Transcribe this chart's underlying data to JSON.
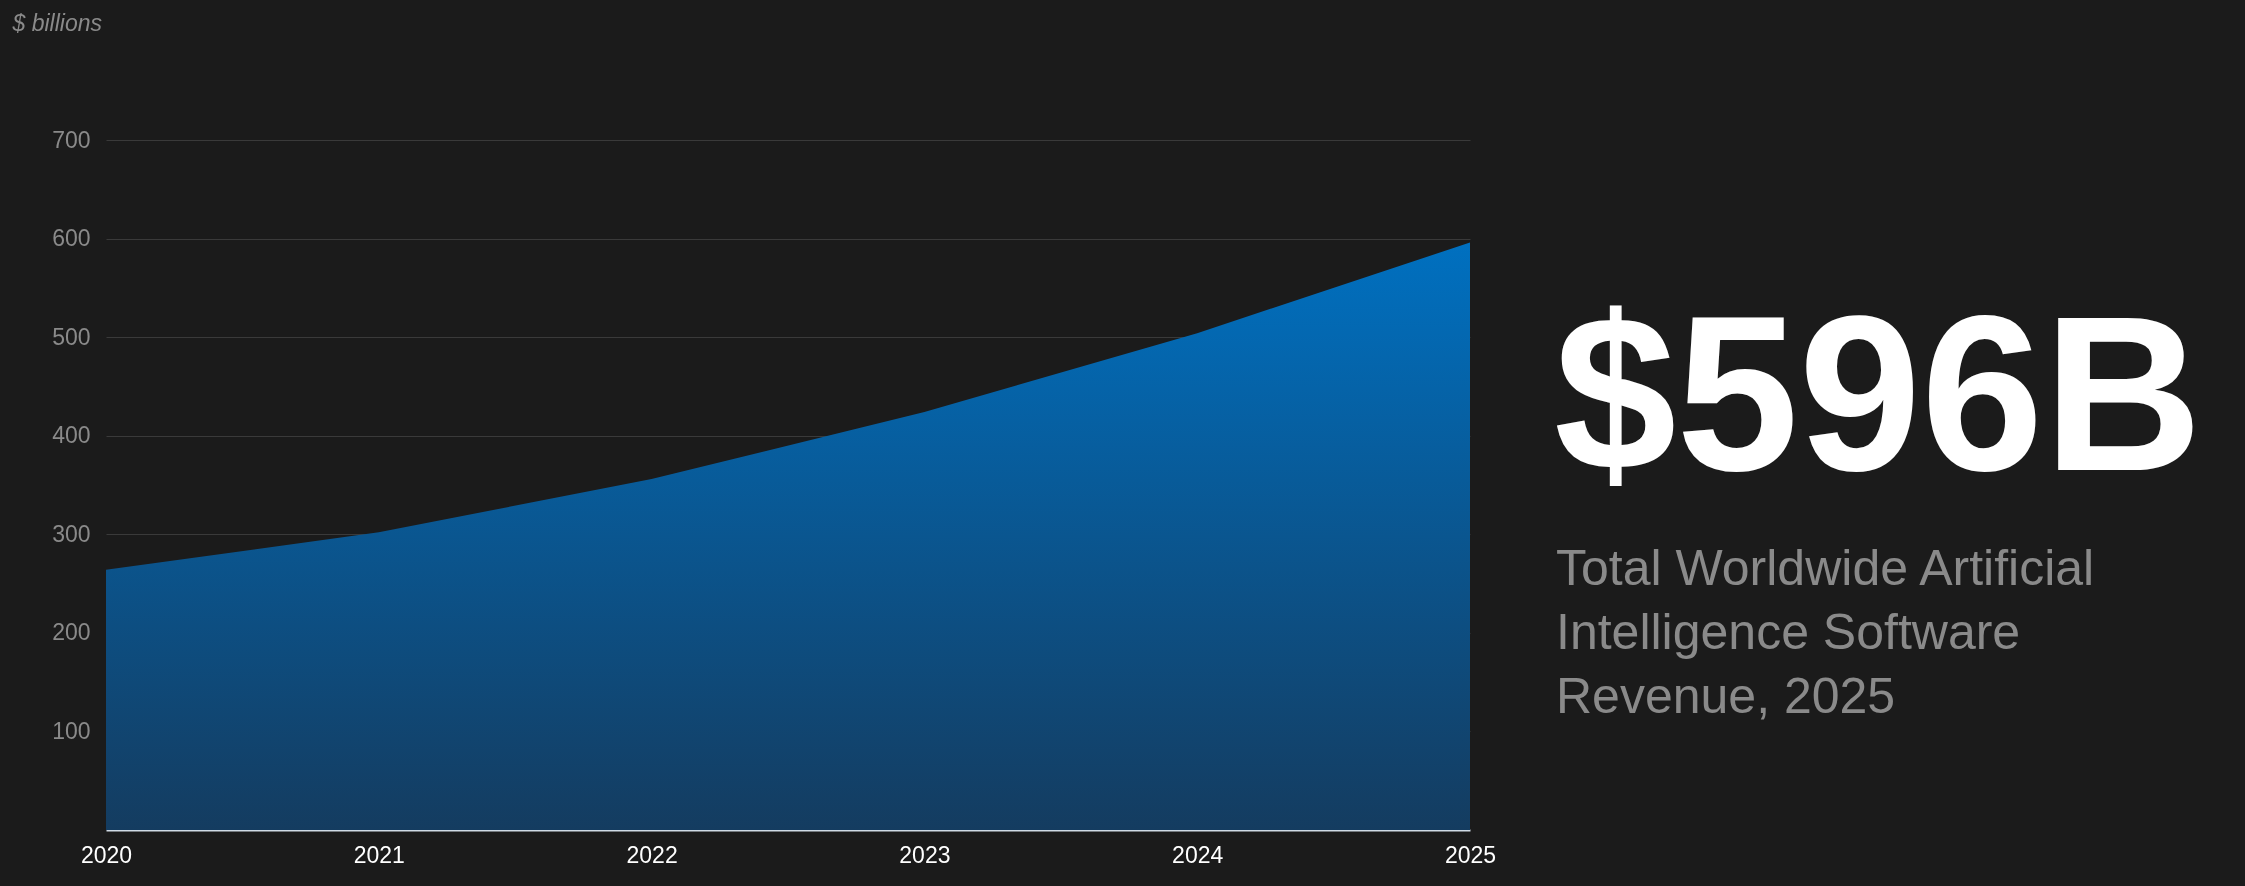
{
  "chart_data": {
    "type": "area",
    "ylabel": "$ billions",
    "x": [
      2020,
      2021,
      2022,
      2023,
      2024,
      2025
    ],
    "series": [
      {
        "color": "#0070c0",
        "values": [
          264,
          302,
          356,
          424,
          504,
          596
        ]
      }
    ],
    "xlim": [
      2020,
      2025
    ],
    "xticks": [
      2020,
      2021,
      2022,
      2023,
      2024,
      2025
    ],
    "ylim": [
      0,
      700
    ],
    "yticks": [
      100,
      200,
      300,
      400,
      500,
      600,
      700
    ],
    "grid": "y",
    "annotations": [
      "$596B",
      "Total Worldwide Artificial Intelligence Software Revenue, 2025"
    ]
  }
}
